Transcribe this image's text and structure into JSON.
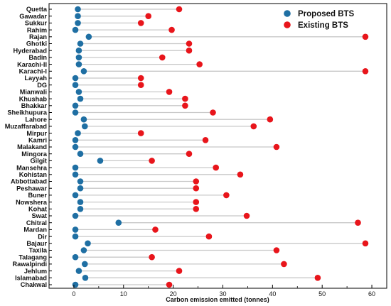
{
  "chart_data": {
    "type": "dumbbell",
    "xlabel": "Carbon emission emitted (tonnes)",
    "xlim": [
      -5,
      63
    ],
    "xticks": [
      0,
      10,
      20,
      30,
      40,
      50,
      60
    ],
    "legend_placement": "top-right",
    "categories": [
      "Quetta",
      "Gawadar",
      "Sukkur",
      "Rahim",
      "Rajan",
      "Ghotki",
      "Hyderabad",
      "Badin",
      "Karachi-II",
      "Karachi-I",
      "Layyah",
      "DG",
      "Mianwali",
      "Khushab",
      "Bhakkar",
      "Sheikhupura",
      "Lahore",
      "Muzaffarabad",
      "Mirpur",
      "Kamri",
      "Malakand",
      "Mingora",
      "Gilgit",
      "Mansehra",
      "Kohistan",
      "Abbottabad",
      "Peshawar",
      "Buner",
      "Nowshera",
      "Kohat",
      "Swat",
      "Chitral",
      "Mardan",
      "Dir",
      "Bajaur",
      "Taxila",
      "Talagang",
      "Rawalpindi",
      "Jehlum",
      "Islamabad",
      "Chakwal"
    ],
    "series": [
      {
        "name": "Proposed BTS",
        "color": "#1f6fa3",
        "values": [
          0.8,
          0.8,
          0.8,
          0.3,
          3.0,
          1.3,
          1.0,
          1.0,
          1.0,
          2.0,
          0.3,
          0.3,
          1.0,
          1.3,
          0.3,
          0.3,
          2.0,
          2.2,
          0.8,
          0.3,
          0.3,
          1.3,
          5.3,
          0.3,
          0.3,
          1.3,
          1.3,
          0.3,
          1.3,
          1.3,
          0.3,
          9.0,
          0.3,
          0.3,
          2.8,
          2.0,
          0.3,
          2.2,
          1.0,
          2.3,
          0.3
        ]
      },
      {
        "name": "Existing BTS",
        "color": "#e8151b",
        "values": [
          21.2,
          15.0,
          13.5,
          19.7,
          58.7,
          23.2,
          23.2,
          17.8,
          25.3,
          58.7,
          13.5,
          13.5,
          19.2,
          22.4,
          22.4,
          28.0,
          39.5,
          36.2,
          13.5,
          26.5,
          40.8,
          23.2,
          15.7,
          28.6,
          33.5,
          24.6,
          24.6,
          30.7,
          24.6,
          24.6,
          34.8,
          57.2,
          16.4,
          27.2,
          58.7,
          40.8,
          15.7,
          42.3,
          21.2,
          49.1,
          19.2
        ]
      }
    ]
  }
}
